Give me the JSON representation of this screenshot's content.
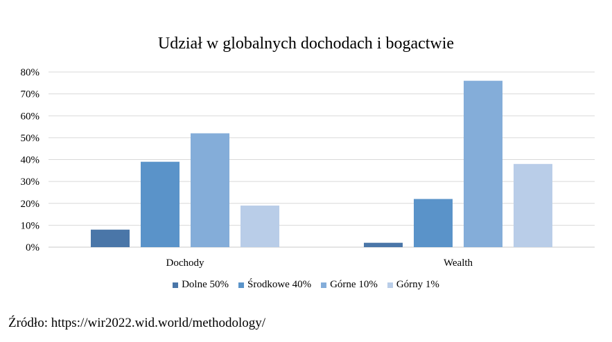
{
  "chart_data": {
    "type": "bar",
    "title": "Udział w globalnych dochodach i bogactwie",
    "xlabel": "",
    "ylabel": "",
    "categories": [
      "Dochody",
      "Wealth"
    ],
    "series": [
      {
        "name": "Dolne 50%",
        "color": "#4a76a8",
        "values": [
          8,
          2
        ]
      },
      {
        "name": "Środkowe 40%",
        "color": "#5a93c9",
        "values": [
          39,
          22
        ]
      },
      {
        "name": "Górne 10%",
        "color": "#84add9",
        "values": [
          52,
          76
        ]
      },
      {
        "name": "Górny 1%",
        "color": "#b9cde8",
        "values": [
          19,
          38
        ]
      }
    ],
    "ylim": [
      0,
      80
    ],
    "yticks": [
      0,
      10,
      20,
      30,
      40,
      50,
      60,
      70,
      80
    ],
    "ytick_labels": [
      "0%",
      "10%",
      "20%",
      "30%",
      "40%",
      "50%",
      "60%",
      "70%",
      "80%"
    ],
    "grid": true,
    "legend_position": "bottom"
  },
  "source": "Źródło: https://wir2022.wid.world/methodology/"
}
